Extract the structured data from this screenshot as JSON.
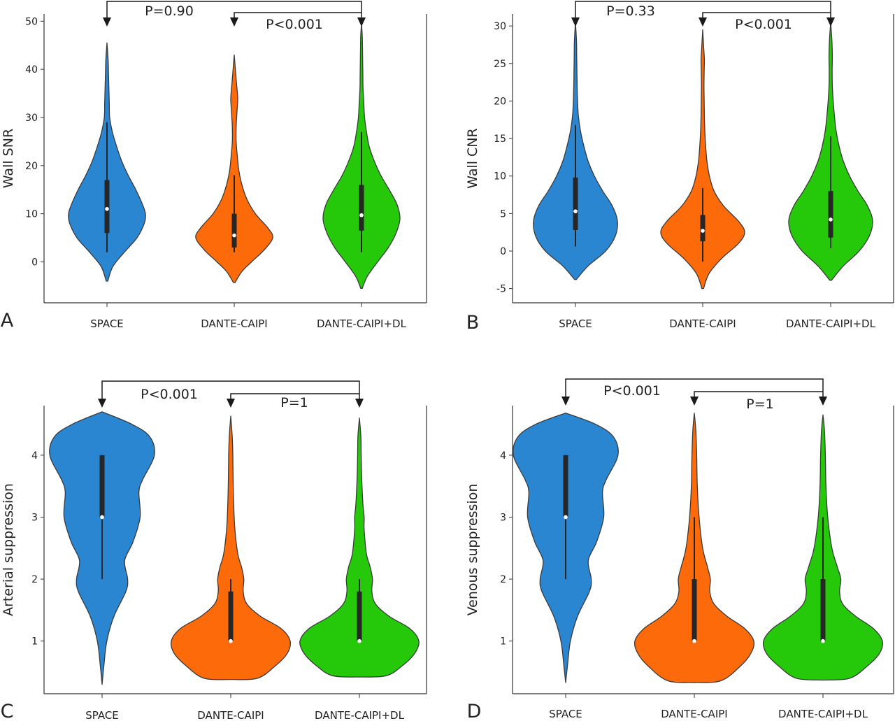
{
  "figure": {
    "background": "#ffffff",
    "colors": {
      "SPACE": "#2a86d1",
      "DANTE-CAIPI": "#fc6a0a",
      "DANTE-CAIPI+DL": "#25c90a",
      "axis": "#333333"
    }
  },
  "chart_data": [
    {
      "type": "violin",
      "panel": "A",
      "ylabel": "Wall SNR",
      "categories": [
        "SPACE",
        "DANTE-CAIPI",
        "DANTE-CAIPI+DL"
      ],
      "yticks": [
        0,
        10,
        20,
        30,
        40,
        50
      ],
      "ylim": [
        -8.5,
        51.5
      ],
      "grid": false,
      "comparisons": [
        {
          "from": "SPACE",
          "to": "DANTE-CAIPI+DL",
          "label": "P=0.90"
        },
        {
          "from": "DANTE-CAIPI",
          "to": "DANTE-CAIPI+DL",
          "label": "P<0.001"
        }
      ],
      "series": [
        {
          "category": "SPACE",
          "color": "#2a86d1",
          "median": 11,
          "q1": 6,
          "q3": 17,
          "whisker_low": 2,
          "whisker_high": 29,
          "density": [
            [
              -4,
              0.02
            ],
            [
              -1,
              0.15
            ],
            [
              2,
              0.45
            ],
            [
              5,
              0.78
            ],
            [
              8,
              0.97
            ],
            [
              10,
              1.0
            ],
            [
              12,
              0.92
            ],
            [
              15,
              0.75
            ],
            [
              18,
              0.55
            ],
            [
              21,
              0.38
            ],
            [
              24,
              0.25
            ],
            [
              27,
              0.14
            ],
            [
              30,
              0.07
            ],
            [
              33,
              0.06
            ],
            [
              36,
              0.05
            ],
            [
              39,
              0.04
            ],
            [
              42,
              0.03
            ],
            [
              45.5,
              0.0
            ]
          ]
        },
        {
          "category": "DANTE-CAIPI",
          "color": "#fc6a0a",
          "median": 5.5,
          "q1": 3,
          "q3": 10,
          "whisker_low": 2,
          "whisker_high": 18,
          "density": [
            [
              -4.3,
              0.02
            ],
            [
              -2,
              0.2
            ],
            [
              0,
              0.45
            ],
            [
              2.5,
              0.78
            ],
            [
              5,
              1.0
            ],
            [
              7,
              0.88
            ],
            [
              10,
              0.55
            ],
            [
              13,
              0.33
            ],
            [
              16,
              0.2
            ],
            [
              19,
              0.12
            ],
            [
              22,
              0.08
            ],
            [
              25,
              0.05
            ],
            [
              28,
              0.05
            ],
            [
              31,
              0.07
            ],
            [
              34,
              0.09
            ],
            [
              37,
              0.06
            ],
            [
              40,
              0.03
            ],
            [
              43,
              0.0
            ]
          ]
        },
        {
          "category": "DANTE-CAIPI+DL",
          "color": "#25c90a",
          "median": 9.7,
          "q1": 6.5,
          "q3": 16,
          "whisker_low": 2,
          "whisker_high": 27,
          "density": [
            [
              -5.5,
              0.02
            ],
            [
              -3,
              0.15
            ],
            [
              0,
              0.42
            ],
            [
              3,
              0.7
            ],
            [
              6,
              0.9
            ],
            [
              9,
              1.0
            ],
            [
              12,
              0.92
            ],
            [
              15,
              0.72
            ],
            [
              18,
              0.5
            ],
            [
              21,
              0.33
            ],
            [
              24,
              0.2
            ],
            [
              27,
              0.13
            ],
            [
              30,
              0.08
            ],
            [
              33,
              0.06
            ],
            [
              36,
              0.04
            ],
            [
              39,
              0.035
            ],
            [
              42,
              0.03
            ],
            [
              45,
              0.025
            ],
            [
              47,
              0.02
            ],
            [
              49.5,
              0.0
            ]
          ]
        }
      ]
    },
    {
      "type": "violin",
      "panel": "B",
      "ylabel": "Wall CNR",
      "categories": [
        "SPACE",
        "DANTE-CAIPI",
        "DANTE-CAIPI+DL"
      ],
      "yticks": [
        -5,
        0,
        5,
        10,
        15,
        20,
        25,
        30
      ],
      "ylim": [
        -6.9,
        31.6
      ],
      "grid": false,
      "comparisons": [
        {
          "from": "SPACE",
          "to": "DANTE-CAIPI+DL",
          "label": "P=0.33"
        },
        {
          "from": "DANTE-CAIPI",
          "to": "DANTE-CAIPI+DL",
          "label": "P<0.001"
        }
      ],
      "series": [
        {
          "category": "SPACE",
          "color": "#2a86d1",
          "median": 5.3,
          "q1": 2.8,
          "q3": 9.8,
          "whisker_low": 0.6,
          "whisker_high": 16.8,
          "density": [
            [
              -3.8,
              0.02
            ],
            [
              -2,
              0.3
            ],
            [
              0,
              0.72
            ],
            [
              2,
              0.95
            ],
            [
              4,
              1.0
            ],
            [
              6,
              0.88
            ],
            [
              8,
              0.65
            ],
            [
              10,
              0.45
            ],
            [
              12,
              0.3
            ],
            [
              14,
              0.2
            ],
            [
              16,
              0.12
            ],
            [
              18,
              0.07
            ],
            [
              20,
              0.05
            ],
            [
              22,
              0.04
            ],
            [
              24,
              0.035
            ],
            [
              26,
              0.03
            ],
            [
              28,
              0.025
            ],
            [
              30.5,
              0.0
            ]
          ]
        },
        {
          "category": "DANTE-CAIPI",
          "color": "#fc6a0a",
          "median": 2.7,
          "q1": 1.3,
          "q3": 4.8,
          "whisker_low": -1.4,
          "whisker_high": 8.4,
          "density": [
            [
              -5,
              0.02
            ],
            [
              -3,
              0.15
            ],
            [
              -1,
              0.45
            ],
            [
              1,
              0.85
            ],
            [
              2.5,
              1.0
            ],
            [
              4,
              0.85
            ],
            [
              6,
              0.5
            ],
            [
              8,
              0.27
            ],
            [
              10,
              0.16
            ],
            [
              12,
              0.1
            ],
            [
              14,
              0.07
            ],
            [
              16,
              0.05
            ],
            [
              18,
              0.04
            ],
            [
              20,
              0.035
            ],
            [
              22,
              0.03
            ],
            [
              24,
              0.035
            ],
            [
              25.5,
              0.04
            ],
            [
              27,
              0.025
            ],
            [
              29.5,
              0.0
            ]
          ]
        },
        {
          "category": "DANTE-CAIPI+DL",
          "color": "#25c90a",
          "median": 4.2,
          "q1": 1.8,
          "q3": 8,
          "whisker_low": 0.4,
          "whisker_high": 15.3,
          "density": [
            [
              -3.9,
              0.02
            ],
            [
              -2,
              0.3
            ],
            [
              0,
              0.68
            ],
            [
              2,
              0.92
            ],
            [
              4,
              1.0
            ],
            [
              6,
              0.88
            ],
            [
              8,
              0.65
            ],
            [
              10,
              0.45
            ],
            [
              12,
              0.3
            ],
            [
              14,
              0.2
            ],
            [
              16,
              0.13
            ],
            [
              18,
              0.09
            ],
            [
              20,
              0.06
            ],
            [
              22,
              0.04
            ],
            [
              24,
              0.035
            ],
            [
              26,
              0.04
            ],
            [
              28,
              0.03
            ],
            [
              30.5,
              0.0
            ]
          ]
        }
      ]
    },
    {
      "type": "violin",
      "panel": "C",
      "ylabel": "Arterial  suppression",
      "categories": [
        "SPACE",
        "DANTE-CAIPI",
        "DANTE-CAIPI+DL"
      ],
      "yticks": [
        1,
        2,
        3,
        4
      ],
      "ylim": [
        0.15,
        4.8
      ],
      "grid": false,
      "comparisons": [
        {
          "from": "SPACE",
          "to": "DANTE-CAIPI+DL",
          "label": "P<0.001"
        },
        {
          "from": "DANTE-CAIPI",
          "to": "DANTE-CAIPI+DL",
          "label": "P=1"
        }
      ],
      "series": [
        {
          "category": "SPACE",
          "color": "#2a86d1",
          "median": 3,
          "q1": 3,
          "q3": 4,
          "whisker_low": 2,
          "whisker_high": 4,
          "density": [
            [
              0.3,
              0.0
            ],
            [
              0.6,
              0.03
            ],
            [
              1.0,
              0.08
            ],
            [
              1.4,
              0.2
            ],
            [
              1.8,
              0.4
            ],
            [
              2.0,
              0.43
            ],
            [
              2.3,
              0.38
            ],
            [
              2.6,
              0.52
            ],
            [
              3.0,
              0.64
            ],
            [
              3.4,
              0.62
            ],
            [
              3.6,
              0.68
            ],
            [
              4.0,
              0.88
            ],
            [
              4.3,
              0.8
            ],
            [
              4.5,
              0.5
            ],
            [
              4.7,
              0.0
            ]
          ]
        },
        {
          "category": "DANTE-CAIPI",
          "color": "#fc6a0a",
          "median": 1,
          "q1": 1,
          "q3": 1.8,
          "whisker_low": 1,
          "whisker_high": 2,
          "density": [
            [
              0.38,
              0.0
            ],
            [
              0.4,
              0.45
            ],
            [
              0.6,
              0.75
            ],
            [
              0.8,
              0.95
            ],
            [
              1.0,
              1.0
            ],
            [
              1.2,
              0.85
            ],
            [
              1.4,
              0.5
            ],
            [
              1.6,
              0.27
            ],
            [
              1.8,
              0.21
            ],
            [
              2.0,
              0.22
            ],
            [
              2.2,
              0.18
            ],
            [
              2.4,
              0.12
            ],
            [
              2.8,
              0.07
            ],
            [
              3.2,
              0.05
            ],
            [
              3.6,
              0.04
            ],
            [
              4.0,
              0.035
            ],
            [
              4.3,
              0.025
            ],
            [
              4.63,
              0.0
            ]
          ]
        },
        {
          "category": "DANTE-CAIPI+DL",
          "color": "#25c90a",
          "median": 1,
          "q1": 1,
          "q3": 1.8,
          "whisker_low": 1,
          "whisker_high": 2,
          "density": [
            [
              0.42,
              0.0
            ],
            [
              0.44,
              0.45
            ],
            [
              0.6,
              0.72
            ],
            [
              0.8,
              0.93
            ],
            [
              1.0,
              1.0
            ],
            [
              1.2,
              0.85
            ],
            [
              1.4,
              0.5
            ],
            [
              1.6,
              0.27
            ],
            [
              1.8,
              0.21
            ],
            [
              2.0,
              0.22
            ],
            [
              2.2,
              0.18
            ],
            [
              2.4,
              0.12
            ],
            [
              2.8,
              0.08
            ],
            [
              3.0,
              0.08
            ],
            [
              3.2,
              0.06
            ],
            [
              3.6,
              0.04
            ],
            [
              4.0,
              0.03
            ],
            [
              4.3,
              0.025
            ],
            [
              4.6,
              0.0
            ]
          ]
        }
      ]
    },
    {
      "type": "violin",
      "panel": "D",
      "ylabel": "Venous  suppression",
      "categories": [
        "SPACE",
        "DANTE-CAIPI",
        "DANTE-CAIPI+DL"
      ],
      "yticks": [
        1,
        2,
        3,
        4
      ],
      "ylim": [
        0.15,
        4.8
      ],
      "grid": false,
      "comparisons": [
        {
          "from": "SPACE",
          "to": "DANTE-CAIPI+DL",
          "label": "P<0.001"
        },
        {
          "from": "DANTE-CAIPI",
          "to": "DANTE-CAIPI+DL",
          "label": "P=1"
        }
      ],
      "series": [
        {
          "category": "SPACE",
          "color": "#2a86d1",
          "median": 3,
          "q1": 3,
          "q3": 4,
          "whisker_low": 2,
          "whisker_high": 4,
          "density": [
            [
              0.33,
              0.0
            ],
            [
              0.6,
              0.03
            ],
            [
              1.0,
              0.08
            ],
            [
              1.4,
              0.2
            ],
            [
              1.8,
              0.4
            ],
            [
              2.0,
              0.43
            ],
            [
              2.3,
              0.38
            ],
            [
              2.6,
              0.52
            ],
            [
              3.0,
              0.64
            ],
            [
              3.4,
              0.62
            ],
            [
              3.6,
              0.68
            ],
            [
              4.0,
              0.88
            ],
            [
              4.3,
              0.8
            ],
            [
              4.5,
              0.5
            ],
            [
              4.68,
              0.0
            ]
          ]
        },
        {
          "category": "DANTE-CAIPI",
          "color": "#fc6a0a",
          "median": 1,
          "q1": 1,
          "q3": 2,
          "whisker_low": 1,
          "whisker_high": 3,
          "density": [
            [
              0.33,
              0.0
            ],
            [
              0.36,
              0.45
            ],
            [
              0.6,
              0.78
            ],
            [
              0.8,
              0.95
            ],
            [
              1.0,
              1.0
            ],
            [
              1.2,
              0.85
            ],
            [
              1.4,
              0.55
            ],
            [
              1.6,
              0.33
            ],
            [
              1.8,
              0.26
            ],
            [
              2.0,
              0.27
            ],
            [
              2.2,
              0.22
            ],
            [
              2.5,
              0.14
            ],
            [
              3.0,
              0.08
            ],
            [
              3.5,
              0.05
            ],
            [
              4.0,
              0.04
            ],
            [
              4.4,
              0.025
            ],
            [
              4.68,
              0.0
            ]
          ]
        },
        {
          "category": "DANTE-CAIPI+DL",
          "color": "#25c90a",
          "median": 1,
          "q1": 1,
          "q3": 2,
          "whisker_low": 1,
          "whisker_high": 3,
          "density": [
            [
              0.37,
              0.0
            ],
            [
              0.4,
              0.45
            ],
            [
              0.6,
              0.75
            ],
            [
              0.8,
              0.95
            ],
            [
              1.0,
              1.0
            ],
            [
              1.2,
              0.85
            ],
            [
              1.4,
              0.55
            ],
            [
              1.6,
              0.33
            ],
            [
              1.8,
              0.28
            ],
            [
              2.0,
              0.3
            ],
            [
              2.2,
              0.24
            ],
            [
              2.5,
              0.15
            ],
            [
              3.0,
              0.08
            ],
            [
              3.5,
              0.05
            ],
            [
              4.0,
              0.04
            ],
            [
              4.4,
              0.025
            ],
            [
              4.65,
              0.0
            ]
          ]
        }
      ]
    }
  ]
}
